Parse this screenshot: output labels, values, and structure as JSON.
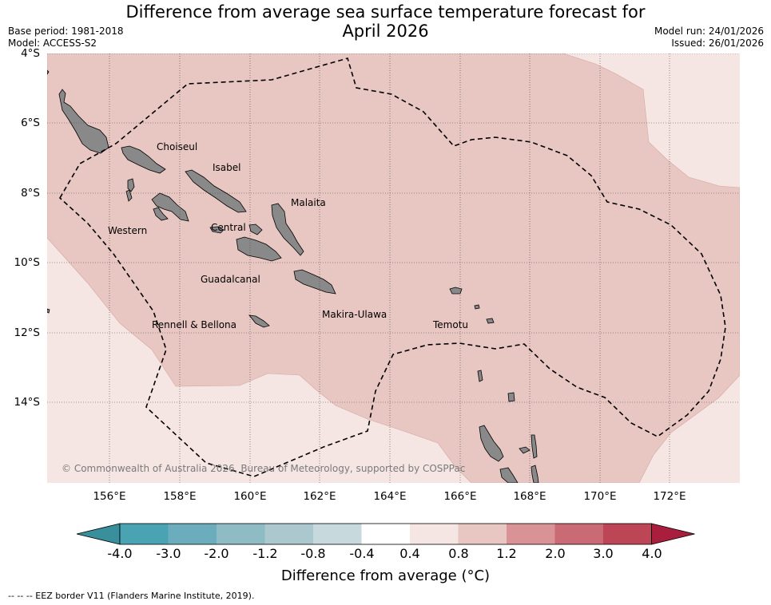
{
  "title_line1": "Difference from average sea surface temperature forecast for",
  "title_line2": "April 2026",
  "meta_left": {
    "base_period": "Base period: 1981-2018",
    "model": "Model: ACCESS-S2"
  },
  "meta_right": {
    "model_run": "Model run: 24/01/2026",
    "issued": "Issued: 26/01/2026"
  },
  "lat_labels": [
    "4°S",
    "6°S",
    "8°S",
    "10°S",
    "12°S",
    "14°S"
  ],
  "lon_labels": [
    "156°E",
    "158°E",
    "160°E",
    "162°E",
    "164°E",
    "166°E",
    "168°E",
    "170°E",
    "172°E"
  ],
  "provinces": [
    {
      "name": "Choiseul"
    },
    {
      "name": "Isabel"
    },
    {
      "name": "Malaita"
    },
    {
      "name": "Western"
    },
    {
      "name": "Central"
    },
    {
      "name": "Guadalcanal"
    },
    {
      "name": "Makira-Ulawa"
    },
    {
      "name": "Rennell & Bellona"
    },
    {
      "name": "Temotu"
    }
  ],
  "copyright": "© Commonwealth of Australia 2026, Bureau of Meteorology, supported by COSPPac",
  "colorbar": {
    "ticks": [
      "-4.0",
      "-3.0",
      "-2.0",
      "-1.2",
      "-0.8",
      "-0.4",
      "0.4",
      "0.8",
      "1.2",
      "2.0",
      "3.0",
      "4.0"
    ],
    "colors": [
      "#3a8f9c",
      "#4aa3b3",
      "#6badbd",
      "#8fbbc5",
      "#aac8cd",
      "#c8d9dd",
      "#ffffff",
      "#f5e6e4",
      "#e8c6c1",
      "#d99397",
      "#c96a74",
      "#bd4656",
      "#a81e3c"
    ],
    "label": "Difference from average (°C)"
  },
  "eez_note": "--  --  -- EEZ border V11 (Flanders Marine Institute, 2019)."
}
